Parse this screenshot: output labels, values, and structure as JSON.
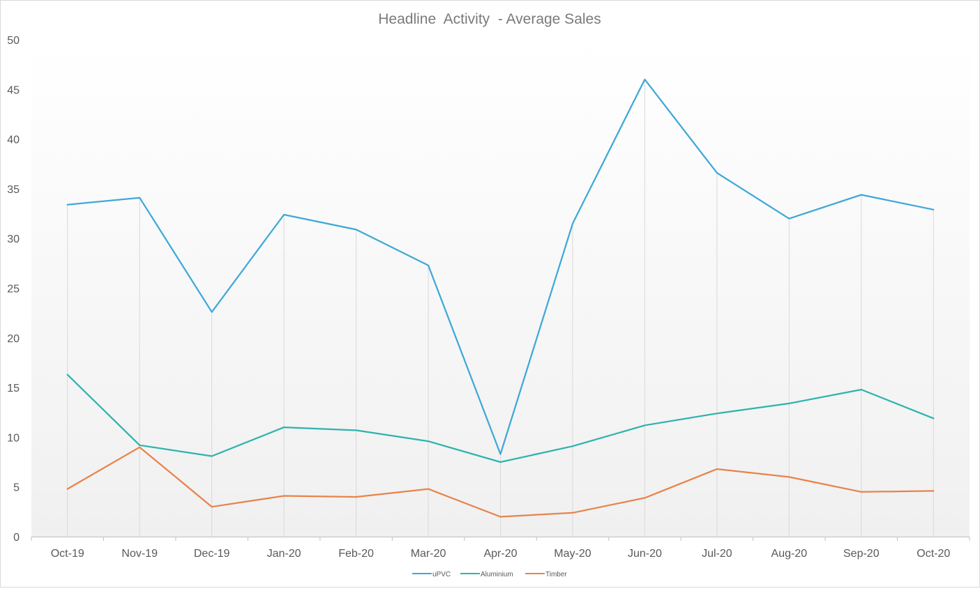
{
  "chart_data": {
    "type": "line",
    "title": "Headline  Activity  - Average Sales",
    "xlabel": "",
    "ylabel": "",
    "categories": [
      "Oct-19",
      "Nov-19",
      "Dec-19",
      "Jan-20",
      "Feb-20",
      "Mar-20",
      "Apr-20",
      "May-20",
      "Jun-20",
      "Jul-20",
      "Aug-20",
      "Sep-20",
      "Oct-20"
    ],
    "ylim": [
      0,
      50
    ],
    "yticks": [
      "0",
      "5",
      "10",
      "15",
      "20",
      "25",
      "30",
      "35",
      "40",
      "45",
      "50"
    ],
    "grid": "vertical drop lines at each category",
    "legend_position": "bottom",
    "series": [
      {
        "name": "uPVC",
        "color": "#3ea8d8",
        "values": [
          33.4,
          34.1,
          22.6,
          32.4,
          30.9,
          27.3,
          8.3,
          31.5,
          46.0,
          36.6,
          32.0,
          34.4,
          32.9
        ]
      },
      {
        "name": "Aluminium",
        "color": "#2db3ad",
        "values": [
          16.3,
          9.2,
          8.1,
          11.0,
          10.7,
          9.6,
          7.5,
          9.1,
          11.2,
          12.4,
          13.4,
          14.8,
          11.9
        ]
      },
      {
        "name": "Timber",
        "color": "#e8834a",
        "values": [
          4.8,
          9.0,
          3.0,
          4.1,
          4.0,
          4.8,
          2.0,
          2.4,
          3.9,
          6.8,
          6.0,
          4.5,
          4.6
        ]
      }
    ]
  }
}
